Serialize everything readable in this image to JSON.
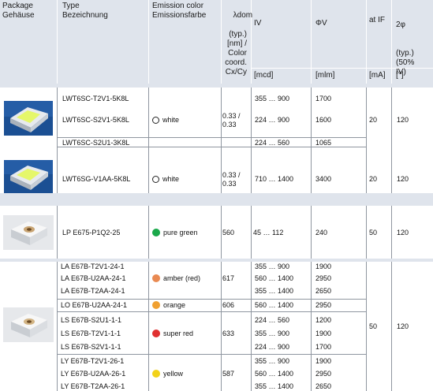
{
  "header": {
    "package": "Package\nGehäuse",
    "type": "Type\nBezeichnung",
    "emission": "Emission color\nEmissionsfarbe",
    "ldom_symbol": "λdom",
    "ldom_rest": "(typ.)\n[nm] /\nColor\ncoord.\nCx/Cy",
    "iv": "IV",
    "phiv": "ΦV",
    "if": "at IF",
    "angle_top": "2φ",
    "angle_rest": "(typ.)\n(50%\nIV)",
    "unit_iv": "[mcd]",
    "unit_phiv": "[mlm]",
    "unit_if": "[mA]",
    "unit_angle": "[°]"
  },
  "groups": [
    {
      "package_icon": "smd-led-white-yellow-chip-icon",
      "rows": [
        {
          "type": "LWT6SC-T2V1-5K8L",
          "iv": "355 … 900",
          "phiv": "1700"
        },
        {
          "type": "LWT6SC-S2V1-5K8L",
          "iv": "224 … 900",
          "phiv": "1600"
        },
        {
          "type": "LWT6SC-S2U1-3K8L",
          "iv": "224 … 560",
          "phiv": "1065"
        }
      ],
      "emission": "white",
      "emission_color": "#ffffff",
      "dom": "0.33 /\n0.33",
      "if": "20",
      "angle": "120"
    },
    {
      "package_icon": "smd-led-white-yellow-chip-icon",
      "rows": [
        {
          "type": "LWT6SG-V1AA-5K8L",
          "iv": "710 … 1400",
          "phiv": "3400"
        }
      ],
      "emission": "white",
      "emission_color": "#ffffff",
      "dom": "0.33 /\n0.33",
      "if": "20",
      "angle": "120"
    },
    {
      "package_icon": "smd-led-pure-green-icon",
      "rows": [
        {
          "type": "LP E675-P1Q2-25",
          "iv": "45 … 112",
          "phiv": "240"
        }
      ],
      "emission": "pure green",
      "emission_color": "#1aa84a",
      "dom": "560",
      "if": "50",
      "angle": "120"
    },
    {
      "package_icon": "smd-led-multicolor-icon",
      "if": "50",
      "angle": "120",
      "subgroups": [
        {
          "emission": "amber (red)",
          "emission_color": "#e98a52",
          "dom": "617",
          "rows": [
            {
              "type": "LA E67B-T2V1-24-1",
              "iv": "355 … 900",
              "phiv": "1900"
            },
            {
              "type": "LA E67B-U2AA-24-1",
              "iv": "560 … 1400",
              "phiv": "2950"
            },
            {
              "type": "LA E67B-T2AA-24-1",
              "iv": "355 … 1400",
              "phiv": "2650"
            }
          ]
        },
        {
          "emission": "orange",
          "emission_color": "#f0a030",
          "dom": "606",
          "rows": [
            {
              "type": "LO E67B-U2AA-24-1",
              "iv": "560 … 1400",
              "phiv": "2950"
            }
          ]
        },
        {
          "emission": "super red",
          "emission_color": "#e03030",
          "dom": "633",
          "rows": [
            {
              "type": "LS E67B-S2U1-1-1",
              "iv": "224 … 560",
              "phiv": "1200"
            },
            {
              "type": "LS E67B-T2V1-1-1",
              "iv": "355 … 900",
              "phiv": "1900"
            },
            {
              "type": "LS E67B-S2V1-1-1",
              "iv": "224 … 900",
              "phiv": "1700"
            }
          ]
        },
        {
          "emission": "yellow",
          "emission_color": "#f2d21a",
          "dom": "587",
          "rows": [
            {
              "type": "LY E67B-T2V1-26-1",
              "iv": "355 … 900",
              "phiv": "1900"
            },
            {
              "type": "LY E67B-U2AA-26-1",
              "iv": "560 … 1400",
              "phiv": "2950"
            },
            {
              "type": "LY E67B-T2AA-26-1",
              "iv": "355 … 1400",
              "phiv": "2650"
            }
          ]
        }
      ]
    }
  ]
}
